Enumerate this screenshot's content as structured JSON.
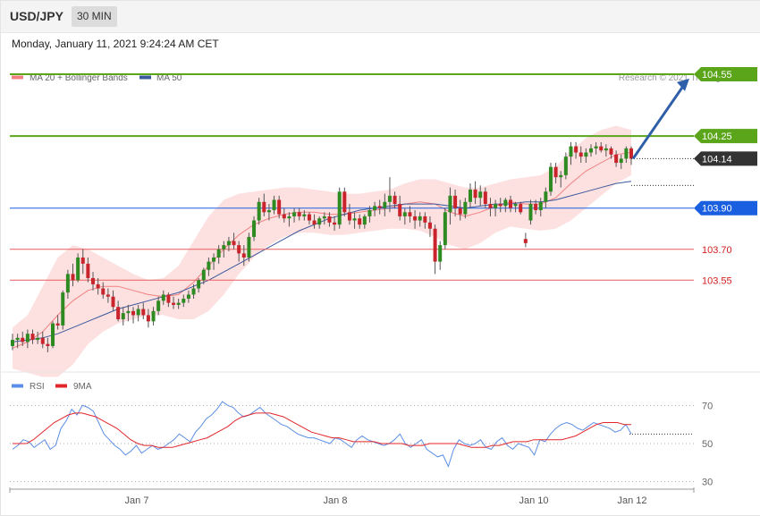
{
  "header": {
    "symbol": "USD/JPY",
    "timeframe": "30 MIN",
    "datetime": "Monday, January 11, 2021 9:24:24 AM CET"
  },
  "legend": {
    "ma20": "MA 20 + Bollinger Bands",
    "ma50": "MA 50",
    "credit": "Research © 2021 Trading Central",
    "rsi": "RSI",
    "rsi_ma": "9MA"
  },
  "colors": {
    "resistance": "#5aa51a",
    "support": "#e85f5f",
    "pivot": "#1a5fe0",
    "ma20": "#f08080",
    "ma50": "#3a5a9e",
    "bollinger_fill": "#fde0e0",
    "candle_up": "#2e8b22",
    "candle_down": "#c9232b",
    "rsi": "#5b8ee6",
    "rsi_ma": "#e3262a",
    "arrow": "#2f5fa8",
    "current": "#333333"
  },
  "levels": [
    {
      "label": "104.55",
      "value": 104.55,
      "kind": "resistance"
    },
    {
      "label": "104.25",
      "value": 104.25,
      "kind": "resistance"
    },
    {
      "label": "103.90",
      "value": 103.9,
      "kind": "pivot"
    },
    {
      "label": "103.70",
      "value": 103.7,
      "kind": "support"
    },
    {
      "label": "103.55",
      "value": 103.55,
      "kind": "support"
    }
  ],
  "current_price": {
    "label": "104.14",
    "value": 104.14
  },
  "chart_data": {
    "type": "candlestick",
    "ylim": [
      103.13,
      104.65
    ],
    "x_ticks": [
      "Jan 7",
      "Jan 8",
      "Jan 10",
      "Jan 12"
    ],
    "candles": [
      [
        103.23,
        103.29,
        103.21,
        103.26
      ],
      [
        103.26,
        103.29,
        103.22,
        103.27
      ],
      [
        103.27,
        103.3,
        103.23,
        103.25
      ],
      [
        103.25,
        103.31,
        103.22,
        103.29
      ],
      [
        103.29,
        103.31,
        103.24,
        103.26
      ],
      [
        103.26,
        103.3,
        103.24,
        103.27
      ],
      [
        103.27,
        103.3,
        103.22,
        103.24
      ],
      [
        103.24,
        103.27,
        103.2,
        103.23
      ],
      [
        103.23,
        103.35,
        103.22,
        103.34
      ],
      [
        103.34,
        103.38,
        103.31,
        103.33
      ],
      [
        103.33,
        103.5,
        103.31,
        103.49
      ],
      [
        103.49,
        103.6,
        103.46,
        103.58
      ],
      [
        103.58,
        103.63,
        103.52,
        103.55
      ],
      [
        103.55,
        103.68,
        103.54,
        103.66
      ],
      [
        103.66,
        103.7,
        103.58,
        103.63
      ],
      [
        103.63,
        103.66,
        103.54,
        103.56
      ],
      [
        103.56,
        103.59,
        103.5,
        103.53
      ],
      [
        103.53,
        103.56,
        103.48,
        103.51
      ],
      [
        103.51,
        103.54,
        103.46,
        103.48
      ],
      [
        103.48,
        103.51,
        103.44,
        103.47
      ],
      [
        103.47,
        103.5,
        103.4,
        103.42
      ],
      [
        103.42,
        103.45,
        103.35,
        103.36
      ],
      [
        103.36,
        103.42,
        103.33,
        103.39
      ],
      [
        103.39,
        103.43,
        103.35,
        103.4
      ],
      [
        103.4,
        103.42,
        103.34,
        103.38
      ],
      [
        103.38,
        103.43,
        103.35,
        103.41
      ],
      [
        103.41,
        103.44,
        103.36,
        103.38
      ],
      [
        103.38,
        103.41,
        103.32,
        103.35
      ],
      [
        103.35,
        103.42,
        103.33,
        103.4
      ],
      [
        103.4,
        103.47,
        103.38,
        103.45
      ],
      [
        103.45,
        103.5,
        103.43,
        103.48
      ],
      [
        103.48,
        103.49,
        103.42,
        103.44
      ],
      [
        103.44,
        103.47,
        103.41,
        103.43
      ],
      [
        103.43,
        103.46,
        103.41,
        103.44
      ],
      [
        103.44,
        103.48,
        103.42,
        103.46
      ],
      [
        103.46,
        103.5,
        103.44,
        103.48
      ],
      [
        103.48,
        103.53,
        103.46,
        103.51
      ],
      [
        103.51,
        103.56,
        103.49,
        103.55
      ],
      [
        103.55,
        103.61,
        103.53,
        103.6
      ],
      [
        103.6,
        103.66,
        103.57,
        103.64
      ],
      [
        103.64,
        103.68,
        103.6,
        103.66
      ],
      [
        103.66,
        103.72,
        103.63,
        103.7
      ],
      [
        103.7,
        103.74,
        103.66,
        103.72
      ],
      [
        103.72,
        103.76,
        103.69,
        103.74
      ],
      [
        103.74,
        103.78,
        103.7,
        103.72
      ],
      [
        103.72,
        103.74,
        103.64,
        103.68
      ],
      [
        103.68,
        103.72,
        103.62,
        103.66
      ],
      [
        103.66,
        103.78,
        103.64,
        103.76
      ],
      [
        103.76,
        103.86,
        103.74,
        103.84
      ],
      [
        103.84,
        103.95,
        103.82,
        103.93
      ],
      [
        103.93,
        103.97,
        103.86,
        103.88
      ],
      [
        103.88,
        103.92,
        103.84,
        103.89
      ],
      [
        103.89,
        103.96,
        103.87,
        103.94
      ],
      [
        103.94,
        103.96,
        103.85,
        103.87
      ],
      [
        103.87,
        103.9,
        103.83,
        103.85
      ],
      [
        103.85,
        103.88,
        103.81,
        103.86
      ],
      [
        103.86,
        103.9,
        103.83,
        103.88
      ],
      [
        103.88,
        103.9,
        103.84,
        103.86
      ],
      [
        103.86,
        103.89,
        103.84,
        103.87
      ],
      [
        103.87,
        103.88,
        103.82,
        103.84
      ],
      [
        103.84,
        103.87,
        103.8,
        103.82
      ],
      [
        103.82,
        103.86,
        103.8,
        103.85
      ],
      [
        103.85,
        103.88,
        103.82,
        103.86
      ],
      [
        103.86,
        103.88,
        103.81,
        103.83
      ],
      [
        103.83,
        103.86,
        103.79,
        103.82
      ],
      [
        103.82,
        104.0,
        103.8,
        103.98
      ],
      [
        103.98,
        104.0,
        103.86,
        103.88
      ],
      [
        103.88,
        103.92,
        103.82,
        103.84
      ],
      [
        103.84,
        103.88,
        103.8,
        103.85
      ],
      [
        103.85,
        103.87,
        103.8,
        103.82
      ],
      [
        103.82,
        103.87,
        103.8,
        103.86
      ],
      [
        103.86,
        103.91,
        103.83,
        103.89
      ],
      [
        103.89,
        103.93,
        103.86,
        103.91
      ],
      [
        103.91,
        103.94,
        103.87,
        103.9
      ],
      [
        103.9,
        103.97,
        103.86,
        103.93
      ],
      [
        103.93,
        104.05,
        103.88,
        103.96
      ],
      [
        103.96,
        103.98,
        103.9,
        103.92
      ],
      [
        103.92,
        103.96,
        103.84,
        103.86
      ],
      [
        103.86,
        103.9,
        103.82,
        103.88
      ],
      [
        103.88,
        103.91,
        103.83,
        103.86
      ],
      [
        103.86,
        103.89,
        103.8,
        103.84
      ],
      [
        103.84,
        103.88,
        103.81,
        103.86
      ],
      [
        103.86,
        103.88,
        103.8,
        103.83
      ],
      [
        103.83,
        103.86,
        103.76,
        103.8
      ],
      [
        103.8,
        103.82,
        103.58,
        103.64
      ],
      [
        103.64,
        103.74,
        103.6,
        103.72
      ],
      [
        103.72,
        103.9,
        103.7,
        103.88
      ],
      [
        103.88,
        104.0,
        103.82,
        103.96
      ],
      [
        103.96,
        103.99,
        103.86,
        103.9
      ],
      [
        103.9,
        103.94,
        103.84,
        103.87
      ],
      [
        103.87,
        103.95,
        103.85,
        103.93
      ],
      [
        103.93,
        104.02,
        103.9,
        103.99
      ],
      [
        103.99,
        104.03,
        103.92,
        103.95
      ],
      [
        103.95,
        104.01,
        103.91,
        103.98
      ],
      [
        103.98,
        104.0,
        103.9,
        103.92
      ],
      [
        103.92,
        103.95,
        103.86,
        103.9
      ],
      [
        103.9,
        103.94,
        103.86,
        103.92
      ],
      [
        103.92,
        103.95,
        103.88,
        103.91
      ],
      [
        103.91,
        103.95,
        103.88,
        103.94
      ],
      [
        103.94,
        103.96,
        103.88,
        103.9
      ],
      [
        103.91,
        103.93,
        103.88,
        103.92
      ],
      [
        103.92,
        103.93,
        103.87,
        103.88
      ],
      [
        103.75,
        103.78,
        103.71,
        103.73
      ],
      [
        103.84,
        103.94,
        103.82,
        103.92
      ],
      [
        103.92,
        103.94,
        103.87,
        103.89
      ],
      [
        103.89,
        103.95,
        103.86,
        103.93
      ],
      [
        103.93,
        104.0,
        103.9,
        103.98
      ],
      [
        103.98,
        104.12,
        103.96,
        104.1
      ],
      [
        104.1,
        104.12,
        104.02,
        104.05
      ],
      [
        104.05,
        104.08,
        104.0,
        104.06
      ],
      [
        104.06,
        104.17,
        104.04,
        104.15
      ],
      [
        104.15,
        104.22,
        104.11,
        104.2
      ],
      [
        104.2,
        104.22,
        104.14,
        104.17
      ],
      [
        104.17,
        104.2,
        104.12,
        104.15
      ],
      [
        104.15,
        104.19,
        104.12,
        104.17
      ],
      [
        104.17,
        104.21,
        104.15,
        104.19
      ],
      [
        104.19,
        104.22,
        104.16,
        104.2
      ],
      [
        104.2,
        104.22,
        104.17,
        104.18
      ],
      [
        104.18,
        104.21,
        104.15,
        104.19
      ],
      [
        104.19,
        104.2,
        104.14,
        104.16
      ],
      [
        104.16,
        104.18,
        104.1,
        104.12
      ],
      [
        104.12,
        104.16,
        104.09,
        104.14
      ],
      [
        104.14,
        104.2,
        104.12,
        104.19
      ],
      [
        104.19,
        104.2,
        104.11,
        104.14
      ]
    ],
    "ma20": [
      103.22,
      103.25,
      103.3,
      103.38,
      103.45,
      103.5,
      103.52,
      103.52,
      103.5,
      103.48,
      103.47,
      103.48,
      103.54,
      103.62,
      103.7,
      103.77,
      103.82,
      103.85,
      103.87,
      103.88,
      103.88,
      103.87,
      103.87,
      103.88,
      103.89,
      103.9,
      103.92,
      103.93,
      103.92,
      103.88,
      103.86,
      103.88,
      103.91,
      103.93,
      103.92,
      103.92,
      103.95,
      104.02,
      104.08,
      104.12,
      104.16,
      104.17
    ],
    "ma50": [
      103.25,
      103.26,
      103.27,
      103.29,
      103.32,
      103.35,
      103.38,
      103.41,
      103.43,
      103.45,
      103.47,
      103.49,
      103.52,
      103.55,
      103.59,
      103.63,
      103.67,
      103.71,
      103.75,
      103.79,
      103.82,
      103.85,
      103.87,
      103.89,
      103.9,
      103.91,
      103.92,
      103.92,
      103.92,
      103.91,
      103.9,
      103.91,
      103.92,
      103.92,
      103.93,
      103.93,
      103.94,
      103.96,
      103.98,
      104.0,
      104.02,
      104.03
    ],
    "bb_upper": [
      103.32,
      103.38,
      103.52,
      103.66,
      103.72,
      103.7,
      103.66,
      103.62,
      103.58,
      103.55,
      103.56,
      103.62,
      103.74,
      103.86,
      103.94,
      103.97,
      103.98,
      103.99,
      104.0,
      104.0,
      103.99,
      103.98,
      103.97,
      103.97,
      103.98,
      103.99,
      104.02,
      104.04,
      104.04,
      104.02,
      104.0,
      104.0,
      104.02,
      104.04,
      104.05,
      104.06,
      104.1,
      104.18,
      104.24,
      104.28,
      104.3,
      104.28
    ],
    "bb_lower": [
      103.12,
      103.1,
      103.08,
      103.08,
      103.14,
      103.24,
      103.3,
      103.34,
      103.36,
      103.38,
      103.38,
      103.36,
      103.36,
      103.4,
      103.48,
      103.58,
      103.66,
      103.72,
      103.76,
      103.78,
      103.78,
      103.77,
      103.77,
      103.78,
      103.79,
      103.8,
      103.8,
      103.79,
      103.76,
      103.72,
      103.7,
      103.73,
      103.78,
      103.81,
      103.8,
      103.79,
      103.8,
      103.84,
      103.9,
      103.96,
      104.02,
      104.06
    ],
    "rsi_ylim": [
      20,
      80
    ],
    "rsi_ticks": [
      70,
      50,
      30
    ],
    "rsi": [
      47,
      49,
      52,
      51,
      48,
      50,
      52,
      47,
      49,
      58,
      62,
      68,
      65,
      70,
      69,
      67,
      61,
      55,
      52,
      49,
      47,
      44,
      46,
      49,
      45,
      47,
      49,
      47,
      48,
      50,
      52,
      55,
      53,
      51,
      56,
      59,
      63,
      65,
      68,
      72,
      70,
      69,
      66,
      64,
      65,
      67,
      69,
      66,
      64,
      62,
      60,
      59,
      57,
      55,
      54,
      53,
      53,
      52,
      51,
      50,
      53,
      52,
      50,
      48,
      52,
      54,
      52,
      51,
      50,
      49,
      50,
      52,
      55,
      50,
      48,
      50,
      52,
      47,
      45,
      43,
      44,
      38,
      47,
      52,
      50,
      49,
      50,
      52,
      48,
      47,
      51,
      53,
      49,
      47,
      50,
      49,
      48,
      44,
      52,
      51,
      55,
      58,
      60,
      61,
      60,
      58,
      57,
      59,
      61,
      60,
      59,
      58,
      56,
      57,
      60,
      55
    ],
    "rsi_ma": [
      50,
      50,
      50,
      52,
      55,
      58,
      61,
      63,
      65,
      66,
      66,
      65,
      64,
      62,
      60,
      58,
      55,
      52,
      50,
      49,
      49,
      48,
      48,
      48,
      49,
      50,
      51,
      52,
      53,
      55,
      57,
      59,
      62,
      64,
      65,
      66,
      66,
      66,
      65,
      64,
      62,
      60,
      58,
      56,
      55,
      54,
      53,
      53,
      52,
      51,
      51,
      51,
      51,
      50,
      50,
      50,
      50,
      49,
      49,
      49,
      50,
      50,
      50,
      50,
      50,
      49,
      48,
      48,
      48,
      49,
      49,
      50,
      51,
      51,
      51,
      52,
      52,
      52,
      52,
      52,
      53,
      54,
      56,
      58,
      60,
      61,
      61,
      61,
      60,
      60
    ]
  },
  "axes": {
    "rsi_levels": [
      "70",
      "50",
      "30"
    ],
    "time_ticks": [
      "Jan 7",
      "Jan 8",
      "Jan 10",
      "Jan 12"
    ]
  }
}
